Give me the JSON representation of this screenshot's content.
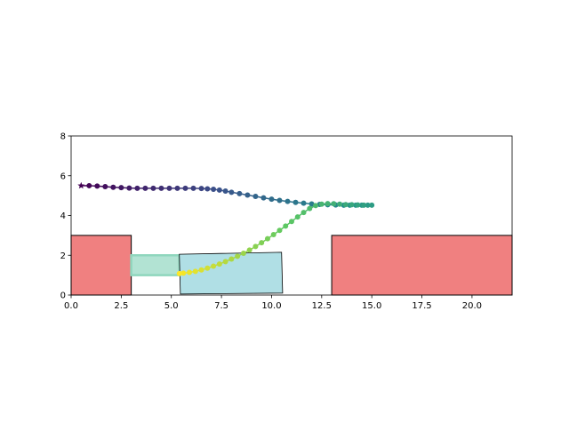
{
  "chart_data": {
    "type": "scatter",
    "title": "",
    "xlabel": "",
    "ylabel": "",
    "xlim": [
      0,
      22
    ],
    "ylim": [
      0,
      8
    ],
    "grid": false,
    "legend": "none",
    "xticks": [
      0,
      2.5,
      5,
      7.5,
      10,
      12.5,
      15,
      17.5,
      20
    ],
    "xtick_labels": [
      "0.0",
      "2.5",
      "5.0",
      "7.5",
      "10.0",
      "12.5",
      "15.0",
      "17.5",
      "20.0"
    ],
    "yticks": [
      0,
      2,
      4,
      6,
      8
    ],
    "ytick_labels": [
      "0",
      "2",
      "4",
      "6",
      "8"
    ],
    "colormap": "viridis",
    "start_marker": "star",
    "path": {
      "x": [
        0.5,
        0.9,
        1.3,
        1.7,
        2.1,
        2.5,
        2.9,
        3.3,
        3.7,
        4.1,
        4.5,
        4.9,
        5.3,
        5.7,
        6.1,
        6.5,
        6.8,
        7.1,
        7.4,
        7.7,
        8.0,
        8.4,
        8.8,
        9.2,
        9.6,
        10.0,
        10.4,
        10.8,
        11.2,
        11.6,
        12.0,
        12.4,
        12.8,
        13.2,
        13.6,
        13.9,
        14.2,
        14.5,
        14.8,
        15.0,
        14.6,
        14.3,
        14.0,
        13.7,
        13.4,
        13.1,
        12.8,
        12.5,
        12.2,
        11.9,
        11.6,
        11.3,
        11.0,
        10.7,
        10.4,
        10.1,
        9.8,
        9.5,
        9.2,
        8.9,
        8.6,
        8.3,
        8.0,
        7.7,
        7.4,
        7.1,
        6.8,
        6.5,
        6.2,
        5.9,
        5.6,
        5.4
      ],
      "y": [
        5.5,
        5.5,
        5.48,
        5.45,
        5.42,
        5.4,
        5.38,
        5.37,
        5.37,
        5.37,
        5.37,
        5.37,
        5.37,
        5.37,
        5.37,
        5.36,
        5.34,
        5.32,
        5.28,
        5.23,
        5.17,
        5.1,
        5.03,
        4.96,
        4.89,
        4.82,
        4.76,
        4.71,
        4.66,
        4.62,
        4.58,
        4.56,
        4.54,
        4.53,
        4.52,
        4.52,
        4.52,
        4.52,
        4.52,
        4.52,
        4.52,
        4.53,
        4.54,
        4.55,
        4.57,
        4.59,
        4.6,
        4.57,
        4.5,
        4.35,
        4.15,
        3.93,
        3.7,
        3.47,
        3.25,
        3.04,
        2.83,
        2.63,
        2.44,
        2.26,
        2.1,
        1.95,
        1.81,
        1.68,
        1.56,
        1.45,
        1.35,
        1.26,
        1.19,
        1.14,
        1.1,
        1.08
      ]
    },
    "regions": [
      {
        "name": "obstacle-left",
        "x": [
          0,
          3
        ],
        "y": [
          0,
          3
        ],
        "color": "#f08080"
      },
      {
        "name": "obstacle-right",
        "x": [
          13,
          22
        ],
        "y": [
          0,
          3
        ],
        "color": "#f08080"
      },
      {
        "name": "green-zone",
        "x": [
          3,
          5.4
        ],
        "y": [
          1,
          2
        ],
        "color": "#b2e3d3"
      },
      {
        "name": "blue-zone",
        "polygon": [
          [
            5.4,
            2.05
          ],
          [
            10.5,
            2.15
          ],
          [
            10.55,
            0.1
          ],
          [
            5.45,
            0.05
          ]
        ],
        "color": "#b0dfe5"
      }
    ]
  }
}
